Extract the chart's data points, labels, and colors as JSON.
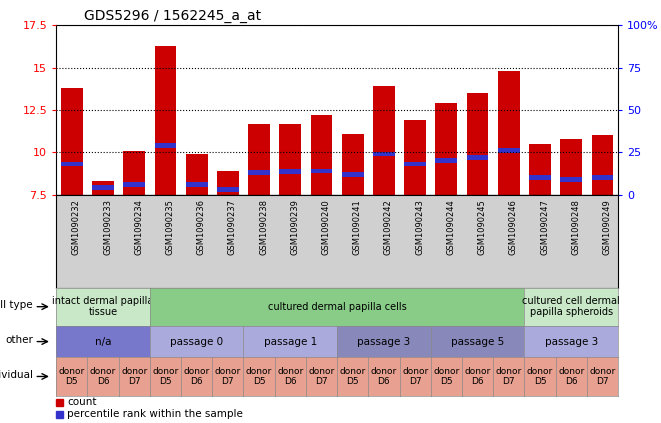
{
  "title": "GDS5296 / 1562245_a_at",
  "samples": [
    "GSM1090232",
    "GSM1090233",
    "GSM1090234",
    "GSM1090235",
    "GSM1090236",
    "GSM1090237",
    "GSM1090238",
    "GSM1090239",
    "GSM1090240",
    "GSM1090241",
    "GSM1090242",
    "GSM1090243",
    "GSM1090244",
    "GSM1090245",
    "GSM1090246",
    "GSM1090247",
    "GSM1090248",
    "GSM1090249"
  ],
  "counts": [
    13.8,
    8.3,
    10.1,
    16.3,
    9.9,
    8.9,
    11.7,
    11.7,
    12.2,
    11.1,
    13.9,
    11.9,
    12.9,
    13.5,
    14.8,
    10.5,
    10.8,
    11.0
  ],
  "percentile_vals": [
    9.3,
    7.9,
    8.1,
    10.4,
    8.1,
    7.8,
    8.8,
    8.85,
    8.9,
    8.7,
    9.9,
    9.3,
    9.5,
    9.7,
    10.1,
    8.5,
    8.4,
    8.5
  ],
  "ymin": 7.5,
  "ymax": 17.5,
  "yticks": [
    7.5,
    10.0,
    12.5,
    15.0,
    17.5
  ],
  "ytick_labels": [
    "7.5",
    "10",
    "12.5",
    "15",
    "17.5"
  ],
  "right_ytick_labels": [
    "100%",
    "75",
    "50",
    "25",
    "0"
  ],
  "right_ytick_vals": [
    17.5,
    15.0,
    12.5,
    10.0,
    7.5
  ],
  "bar_color": "#cc0000",
  "blue_color": "#3333cc",
  "blue_bar_height": 0.28,
  "xtick_bg_color": "#d0d0d0",
  "cell_type_groups": [
    {
      "label": "intact dermal papilla\ntissue",
      "start": 0,
      "end": 3,
      "color": "#c8e8c8"
    },
    {
      "label": "cultured dermal papilla cells",
      "start": 3,
      "end": 15,
      "color": "#88cc88"
    },
    {
      "label": "cultured cell dermal\npapilla spheroids",
      "start": 15,
      "end": 18,
      "color": "#c8e8c8"
    }
  ],
  "other_groups": [
    {
      "label": "n/a",
      "start": 0,
      "end": 3,
      "color": "#7777cc"
    },
    {
      "label": "passage 0",
      "start": 3,
      "end": 6,
      "color": "#aaaadd"
    },
    {
      "label": "passage 1",
      "start": 6,
      "end": 9,
      "color": "#aaaadd"
    },
    {
      "label": "passage 3",
      "start": 9,
      "end": 12,
      "color": "#8888bb"
    },
    {
      "label": "passage 5",
      "start": 12,
      "end": 15,
      "color": "#8888bb"
    },
    {
      "label": "passage 3",
      "start": 15,
      "end": 18,
      "color": "#aaaadd"
    }
  ],
  "individual_groups": [
    {
      "label": "donor\nD5",
      "start": 0,
      "end": 1
    },
    {
      "label": "donor\nD6",
      "start": 1,
      "end": 2
    },
    {
      "label": "donor\nD7",
      "start": 2,
      "end": 3
    },
    {
      "label": "donor\nD5",
      "start": 3,
      "end": 4
    },
    {
      "label": "donor\nD6",
      "start": 4,
      "end": 5
    },
    {
      "label": "donor\nD7",
      "start": 5,
      "end": 6
    },
    {
      "label": "donor\nD5",
      "start": 6,
      "end": 7
    },
    {
      "label": "donor\nD6",
      "start": 7,
      "end": 8
    },
    {
      "label": "donor\nD7",
      "start": 8,
      "end": 9
    },
    {
      "label": "donor\nD5",
      "start": 9,
      "end": 10
    },
    {
      "label": "donor\nD6",
      "start": 10,
      "end": 11
    },
    {
      "label": "donor\nD7",
      "start": 11,
      "end": 12
    },
    {
      "label": "donor\nD5",
      "start": 12,
      "end": 13
    },
    {
      "label": "donor\nD6",
      "start": 13,
      "end": 14
    },
    {
      "label": "donor\nD7",
      "start": 14,
      "end": 15
    },
    {
      "label": "donor\nD5",
      "start": 15,
      "end": 16
    },
    {
      "label": "donor\nD6",
      "start": 16,
      "end": 17
    },
    {
      "label": "donor\nD7",
      "start": 17,
      "end": 18
    }
  ],
  "ind_color": "#e8a090"
}
